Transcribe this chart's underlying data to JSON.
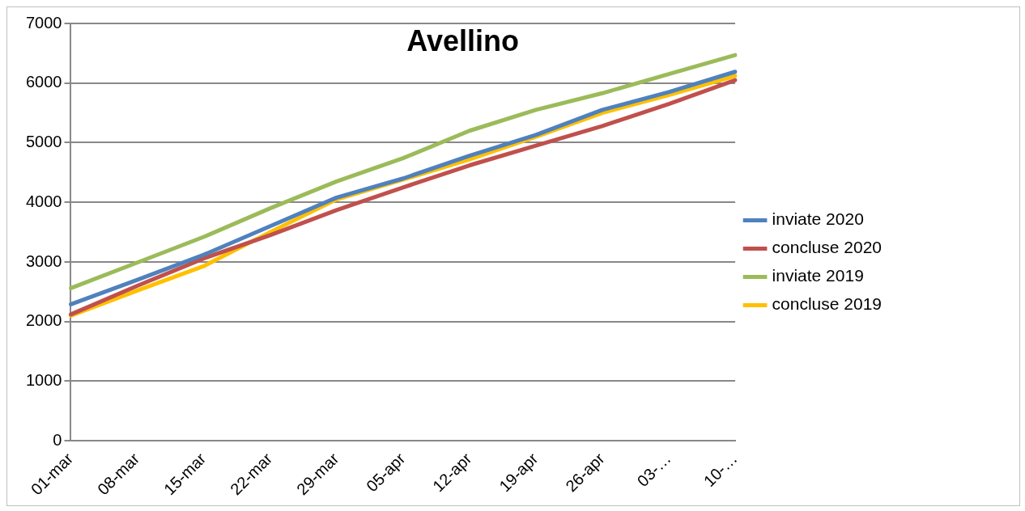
{
  "chart_data": {
    "type": "line",
    "title": "Avellino",
    "categories": [
      "01-mar",
      "08-mar",
      "15-mar",
      "22-mar",
      "29-mar",
      "05-apr",
      "12-apr",
      "19-apr",
      "26-apr",
      "03-…",
      "10-…"
    ],
    "series": [
      {
        "name": "inviate 2020",
        "color": "#4f81bd",
        "values": [
          2290,
          2700,
          3120,
          3600,
          4080,
          4400,
          4780,
          5130,
          5550,
          5850,
          6190
        ]
      },
      {
        "name": "concluse 2020",
        "color": "#c0504d",
        "values": [
          2120,
          2600,
          3060,
          3450,
          3870,
          4250,
          4620,
          4950,
          5280,
          5650,
          6050
        ]
      },
      {
        "name": "inviate 2019",
        "color": "#9bbb59",
        "values": [
          2560,
          2990,
          3420,
          3900,
          4350,
          4740,
          5200,
          5550,
          5830,
          6150,
          6470
        ]
      },
      {
        "name": "concluse 2019",
        "color": "#ffc000",
        "values": [
          2100,
          2520,
          2930,
          3500,
          4050,
          4380,
          4720,
          5100,
          5500,
          5800,
          6120
        ]
      }
    ],
    "ylim": [
      0,
      7000
    ],
    "yticks": [
      0,
      1000,
      2000,
      3000,
      4000,
      5000,
      6000,
      7000
    ],
    "grid": "y",
    "legend": "right",
    "marker": "none",
    "line_style": "solid"
  }
}
